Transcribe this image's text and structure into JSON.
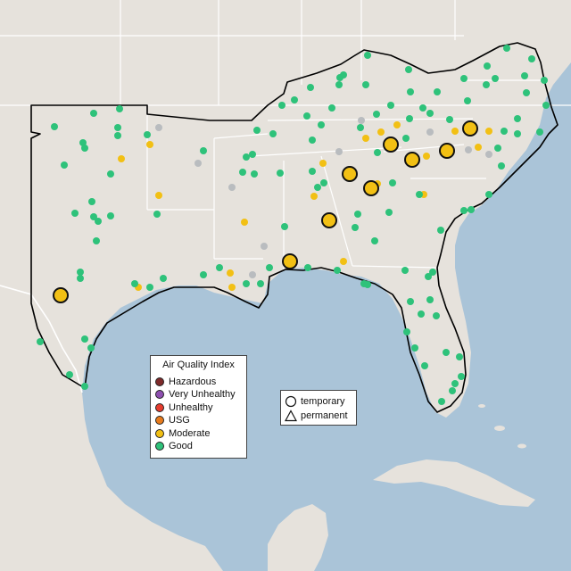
{
  "colors": {
    "water": "#aac4d8",
    "land": "#ece8e3",
    "land_outside": "#e6e2dc",
    "border": "#ffffff",
    "region_outline": "#000000",
    "good": "#2ec27a",
    "moderate": "#f2c014",
    "inactive": "#b9bcbf"
  },
  "legend": {
    "title": "Air Quality Index",
    "items": [
      {
        "label": "Hazardous",
        "color": "#7e2a2a"
      },
      {
        "label": "Very Unhealthy",
        "color": "#8e4fb0"
      },
      {
        "label": "Unhealthy",
        "color": "#e63c2e"
      },
      {
        "label": "USG",
        "color": "#e87b1c"
      },
      {
        "label": "Moderate",
        "color": "#f2c014"
      },
      {
        "label": "Good",
        "color": "#2ec27a"
      }
    ]
  },
  "monitor_types": {
    "temporary_label": "temporary",
    "permanent_label": "permanent",
    "temporary_icon": "circle-icon",
    "permanent_icon": "triangle-icon"
  },
  "large_monitors_aqi_category": "Moderate"
}
